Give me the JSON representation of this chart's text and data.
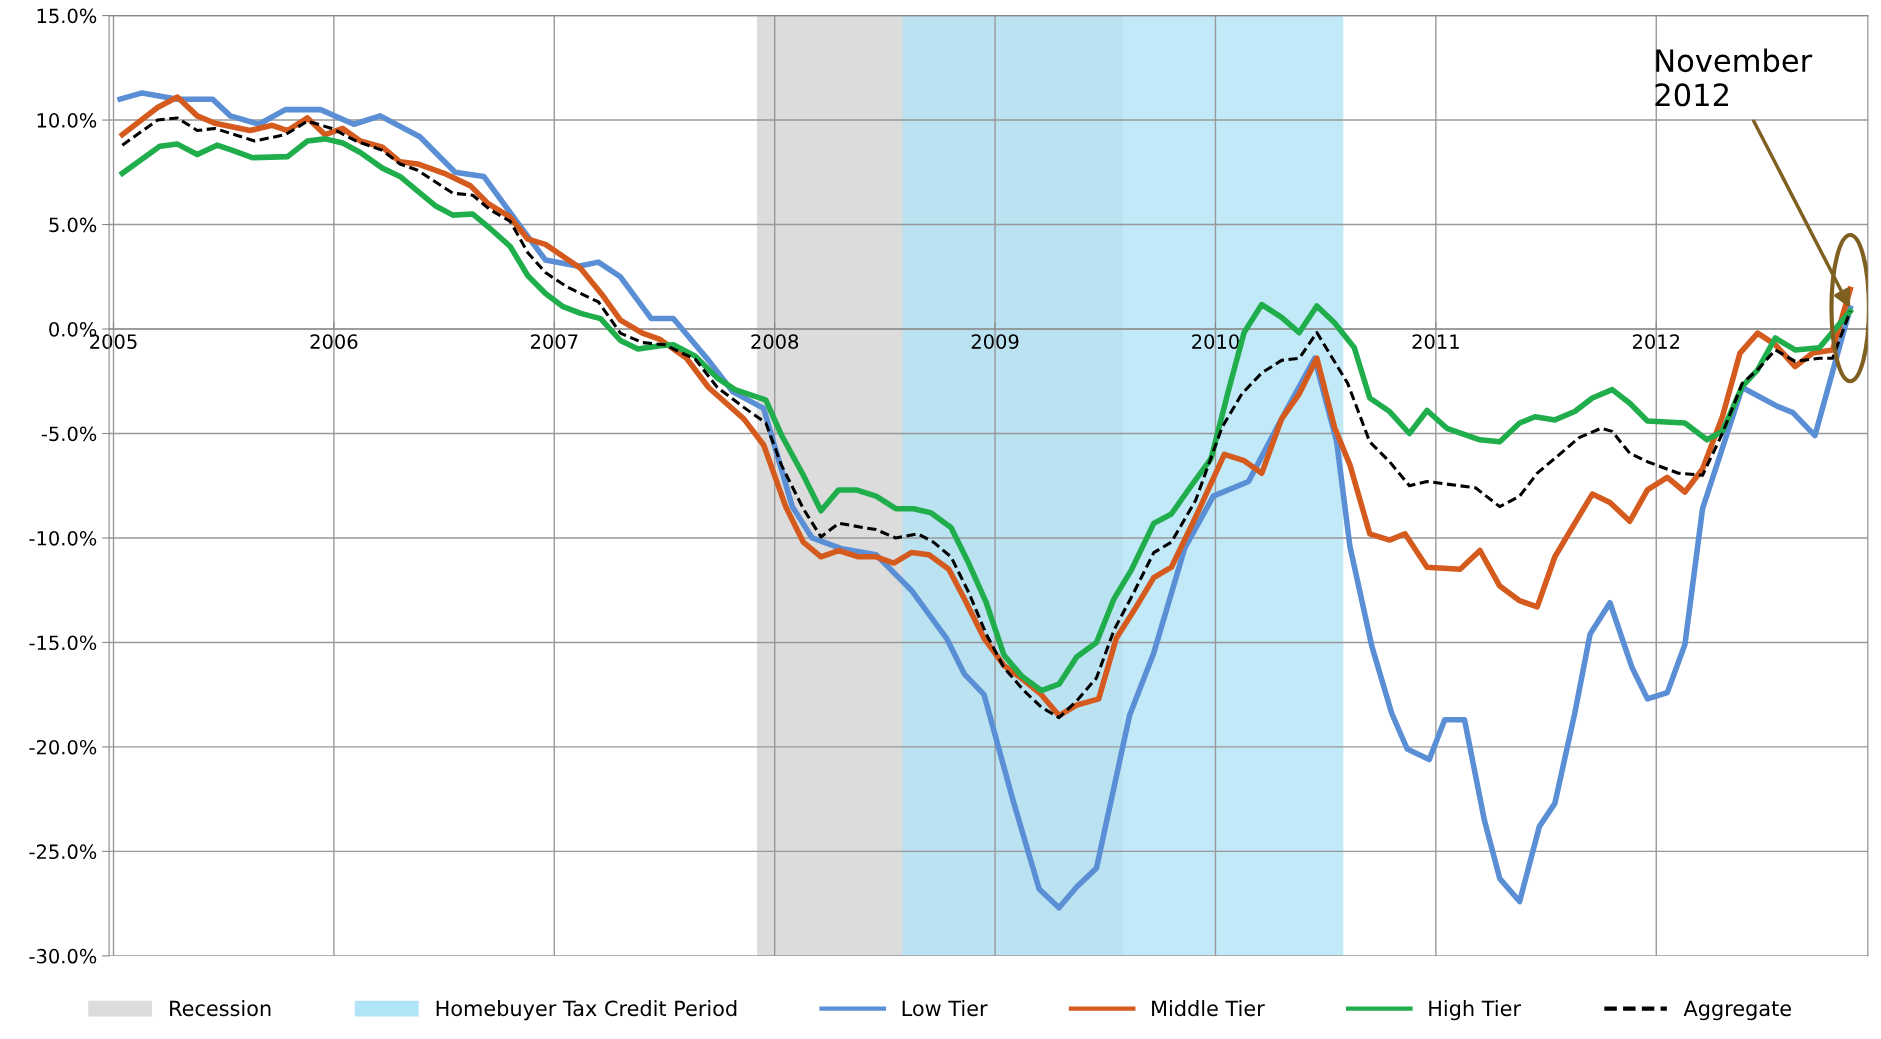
{
  "chart_data": {
    "type": "line",
    "xlim": [
      2004.98,
      2012.96
    ],
    "ylim": [
      -30,
      15
    ],
    "xticks": [
      {
        "value": 2005,
        "label": "2005"
      },
      {
        "value": 2006,
        "label": "2006"
      },
      {
        "value": 2007,
        "label": "2007"
      },
      {
        "value": 2008,
        "label": "2008"
      },
      {
        "value": 2009,
        "label": "2009"
      },
      {
        "value": 2010,
        "label": "2010"
      },
      {
        "value": 2011,
        "label": "2011"
      },
      {
        "value": 2012,
        "label": "2012"
      }
    ],
    "yticks": [
      {
        "value": -30,
        "label": "-30.0%"
      },
      {
        "value": -25,
        "label": "-25.0%"
      },
      {
        "value": -20,
        "label": "-20.0%"
      },
      {
        "value": -15,
        "label": "-15.0%"
      },
      {
        "value": -10,
        "label": "-10.0%"
      },
      {
        "value": -5,
        "label": "-5.0%"
      },
      {
        "value": 0,
        "label": "0.0%"
      },
      {
        "value": 5,
        "label": "5.0%"
      },
      {
        "value": 10,
        "label": "10.0%"
      },
      {
        "value": 15,
        "label": "15.0%"
      }
    ],
    "grid": true,
    "legend": "bottom",
    "marker": "none",
    "bands": [
      {
        "axis": "x",
        "from": 2007.92,
        "to": 2009.58,
        "label": "Recession",
        "color": "#dcdcdc"
      },
      {
        "axis": "x",
        "from": 2008.58,
        "to": 2010.58,
        "label": "Homebuyer Tax Credit Period",
        "color": "#b1e4f6"
      }
    ],
    "series": [
      {
        "name": "Low Tier",
        "color": "#5b8fd5",
        "line_style": "solid",
        "x": [
          2005.03,
          2005.13,
          2005.29,
          2005.45,
          2005.53,
          2005.66,
          2005.78,
          2005.94,
          2006.09,
          2006.21,
          2006.39,
          2006.55,
          2006.68,
          2006.84,
          2006.96,
          2007.11,
          2007.2,
          2007.3,
          2007.44,
          2007.54,
          2007.7,
          2007.81,
          2007.95,
          2008.08,
          2008.17,
          2008.3,
          2008.46,
          2008.62,
          2008.78,
          2008.86,
          2008.95,
          2009.08,
          2009.2,
          2009.29,
          2009.37,
          2009.46,
          2009.61,
          2009.72,
          2009.86,
          2009.99,
          2010.15,
          2010.29,
          2010.45,
          2010.55,
          2010.61,
          2010.71,
          2010.8,
          2010.87,
          2010.97,
          2011.04,
          2011.13,
          2011.22,
          2011.29,
          2011.38,
          2011.47,
          2011.54,
          2011.63,
          2011.7,
          2011.79,
          2011.89,
          2011.96,
          2012.05,
          2012.13,
          2012.21,
          2012.39,
          2012.55,
          2012.62,
          2012.72,
          2012.88
        ],
        "values": [
          11.0,
          11.3,
          11.0,
          11.0,
          10.2,
          9.8,
          10.5,
          10.5,
          9.8,
          10.2,
          9.2,
          7.5,
          7.3,
          5.0,
          3.3,
          3.0,
          3.2,
          2.5,
          0.5,
          0.5,
          -1.5,
          -3.0,
          -3.8,
          -8.5,
          -10.0,
          -10.5,
          -10.8,
          -12.5,
          -14.8,
          -16.5,
          -17.5,
          -22.5,
          -26.8,
          -27.7,
          -26.7,
          -25.8,
          -18.5,
          -15.5,
          -10.5,
          -8.0,
          -7.3,
          -4.5,
          -1.4,
          -5.4,
          -10.4,
          -15.2,
          -18.4,
          -20.1,
          -20.6,
          -18.7,
          -18.7,
          -23.5,
          -26.3,
          -27.4,
          -23.8,
          -22.7,
          -18.4,
          -14.6,
          -13.1,
          -16.2,
          -17.7,
          -17.4,
          -15.1,
          -8.6,
          -2.8,
          -3.7,
          -4.0,
          -5.1,
          1.0
        ]
      },
      {
        "name": "Middle Tier",
        "color": "#d55a1e",
        "line_style": "solid",
        "x": [
          2005.04,
          2005.2,
          2005.29,
          2005.38,
          2005.46,
          2005.62,
          2005.72,
          2005.79,
          2005.88,
          2005.96,
          2006.04,
          2006.12,
          2006.22,
          2006.3,
          2006.38,
          2006.5,
          2006.62,
          2006.7,
          2006.8,
          2006.88,
          2006.96,
          2007.12,
          2007.22,
          2007.3,
          2007.4,
          2007.48,
          2007.6,
          2007.7,
          2007.86,
          2007.95,
          2008.05,
          2008.13,
          2008.21,
          2008.29,
          2008.38,
          2008.46,
          2008.54,
          2008.62,
          2008.7,
          2008.79,
          2008.86,
          2008.95,
          2009.04,
          2009.13,
          2009.21,
          2009.29,
          2009.37,
          2009.47,
          2009.55,
          2009.64,
          2009.72,
          2009.8,
          2009.91,
          2010.04,
          2010.13,
          2010.21,
          2010.3,
          2010.38,
          2010.46,
          2010.54,
          2010.61,
          2010.7,
          2010.79,
          2010.86,
          2010.96,
          2011.11,
          2011.2,
          2011.29,
          2011.38,
          2011.46,
          2011.54,
          2011.63,
          2011.71,
          2011.79,
          2011.88,
          2011.96,
          2012.05,
          2012.13,
          2012.21,
          2012.3,
          2012.38,
          2012.46,
          2012.54,
          2012.63,
          2012.71,
          2012.8,
          2012.88
        ],
        "values": [
          9.3,
          10.6,
          11.1,
          10.2,
          9.85,
          9.5,
          9.75,
          9.5,
          10.1,
          9.3,
          9.6,
          9.0,
          8.7,
          8.0,
          7.9,
          7.45,
          6.85,
          6.0,
          5.35,
          4.3,
          4.05,
          2.9,
          1.6,
          0.43,
          -0.2,
          -0.5,
          -1.4,
          -2.8,
          -4.3,
          -5.55,
          -8.5,
          -10.2,
          -10.9,
          -10.6,
          -10.9,
          -10.9,
          -11.2,
          -10.7,
          -10.8,
          -11.5,
          -12.9,
          -14.8,
          -16.1,
          -16.8,
          -17.5,
          -18.5,
          -18.0,
          -17.7,
          -14.8,
          -13.3,
          -11.9,
          -11.4,
          -9.0,
          -6.0,
          -6.3,
          -6.9,
          -4.3,
          -3.1,
          -1.4,
          -4.7,
          -6.5,
          -9.8,
          -10.1,
          -9.8,
          -11.4,
          -11.5,
          -10.6,
          -12.3,
          -13.0,
          -13.3,
          -10.9,
          -9.3,
          -7.9,
          -8.3,
          -9.2,
          -7.7,
          -7.1,
          -7.8,
          -6.7,
          -4.2,
          -1.15,
          -0.2,
          -0.75,
          -1.8,
          -1.15,
          -1.0,
          1.9
        ]
      },
      {
        "name": "High Tier",
        "color": "#1fae4b",
        "line_style": "solid",
        "x": [
          2005.04,
          2005.21,
          2005.29,
          2005.38,
          2005.47,
          2005.54,
          2005.63,
          2005.79,
          2005.88,
          2005.96,
          2006.04,
          2006.12,
          2006.22,
          2006.3,
          2006.38,
          2006.46,
          2006.54,
          2006.63,
          2006.71,
          2006.8,
          2006.88,
          2006.96,
          2007.04,
          2007.12,
          2007.21,
          2007.3,
          2007.38,
          2007.48,
          2007.54,
          2007.64,
          2007.74,
          2007.82,
          2007.96,
          2008.03,
          2008.13,
          2008.21,
          2008.29,
          2008.37,
          2008.46,
          2008.55,
          2008.63,
          2008.71,
          2008.8,
          2008.88,
          2008.96,
          2009.04,
          2009.12,
          2009.21,
          2009.29,
          2009.37,
          2009.46,
          2009.54,
          2009.62,
          2009.72,
          2009.8,
          2009.89,
          2009.98,
          2010.06,
          2010.13,
          2010.21,
          2010.3,
          2010.38,
          2010.46,
          2010.54,
          2010.63,
          2010.7,
          2010.79,
          2010.88,
          2010.96,
          2011.05,
          2011.2,
          2011.29,
          2011.38,
          2011.45,
          2011.54,
          2011.63,
          2011.71,
          2011.8,
          2011.88,
          2011.96,
          2012.13,
          2012.23,
          2012.3,
          2012.39,
          2012.46,
          2012.54,
          2012.63,
          2012.74,
          2012.88
        ],
        "values": [
          7.45,
          8.75,
          8.85,
          8.35,
          8.8,
          8.55,
          8.2,
          8.25,
          9.0,
          9.1,
          8.9,
          8.45,
          7.7,
          7.3,
          6.6,
          5.9,
          5.45,
          5.5,
          4.8,
          3.95,
          2.55,
          1.7,
          1.07,
          0.75,
          0.5,
          -0.55,
          -0.96,
          -0.8,
          -0.75,
          -1.3,
          -2.35,
          -2.9,
          -3.4,
          -5.06,
          -7.0,
          -8.7,
          -7.7,
          -7.7,
          -8.0,
          -8.6,
          -8.6,
          -8.8,
          -9.5,
          -11.2,
          -13.1,
          -15.6,
          -16.6,
          -17.3,
          -17.0,
          -15.7,
          -15.0,
          -12.9,
          -11.5,
          -9.3,
          -8.85,
          -7.5,
          -6.2,
          -2.9,
          -0.17,
          1.17,
          0.56,
          -0.17,
          1.1,
          0.3,
          -0.9,
          -3.3,
          -3.95,
          -5.0,
          -3.9,
          -4.75,
          -5.3,
          -5.4,
          -4.5,
          -4.2,
          -4.35,
          -3.95,
          -3.3,
          -2.9,
          -3.55,
          -4.4,
          -4.5,
          -5.3,
          -4.9,
          -2.75,
          -1.95,
          -0.43,
          -1.0,
          -0.9,
          0.85
        ]
      },
      {
        "name": "Aggregate",
        "color": "#000000",
        "line_style": "dashed",
        "x": [
          2005.04,
          2005.2,
          2005.29,
          2005.38,
          2005.46,
          2005.64,
          2005.78,
          2005.88,
          2005.99,
          2006.1,
          2006.22,
          2006.3,
          2006.38,
          2006.54,
          2006.63,
          2006.71,
          2006.8,
          2006.88,
          2006.96,
          2007.06,
          2007.2,
          2007.3,
          2007.4,
          2007.5,
          2007.64,
          2007.74,
          2007.86,
          2007.96,
          2008.03,
          2008.13,
          2008.21,
          2008.29,
          2008.46,
          2008.55,
          2008.65,
          2008.72,
          2008.8,
          2008.88,
          2008.96,
          2009.04,
          2009.13,
          2009.21,
          2009.29,
          2009.37,
          2009.46,
          2009.54,
          2009.63,
          2009.72,
          2009.8,
          2009.91,
          2010.03,
          2010.12,
          2010.21,
          2010.3,
          2010.38,
          2010.46,
          2010.6,
          2010.7,
          2010.79,
          2010.88,
          2010.96,
          2011.18,
          2011.29,
          2011.38,
          2011.46,
          2011.55,
          2011.65,
          2011.75,
          2011.8,
          2011.88,
          2011.96,
          2012.1,
          2012.21,
          2012.3,
          2012.39,
          2012.46,
          2012.54,
          2012.63,
          2012.74,
          2012.8,
          2012.88
        ],
        "values": [
          8.8,
          10.0,
          10.1,
          9.5,
          9.6,
          9.0,
          9.3,
          9.95,
          9.6,
          9.0,
          8.55,
          7.9,
          7.6,
          6.5,
          6.4,
          5.7,
          5.15,
          3.65,
          2.7,
          2.0,
          1.3,
          -0.2,
          -0.65,
          -0.75,
          -1.45,
          -2.8,
          -3.75,
          -4.5,
          -6.5,
          -8.6,
          -9.95,
          -9.3,
          -9.6,
          -10.0,
          -9.8,
          -10.2,
          -10.9,
          -12.6,
          -14.6,
          -16.2,
          -17.3,
          -18.1,
          -18.6,
          -17.8,
          -16.7,
          -14.4,
          -12.6,
          -10.7,
          -10.2,
          -8.2,
          -4.7,
          -3.1,
          -2.1,
          -1.5,
          -1.4,
          -0.17,
          -2.6,
          -5.4,
          -6.35,
          -7.5,
          -7.3,
          -7.6,
          -8.5,
          -8.0,
          -6.9,
          -6.1,
          -5.2,
          -4.75,
          -4.9,
          -5.95,
          -6.35,
          -6.9,
          -7.0,
          -5.0,
          -2.6,
          -1.95,
          -1.0,
          -1.55,
          -1.4,
          -1.4,
          0.85
        ]
      }
    ],
    "annotations": [
      {
        "text": "November\n2012",
        "x": 2012.88,
        "y": 1.0
      }
    ]
  }
}
